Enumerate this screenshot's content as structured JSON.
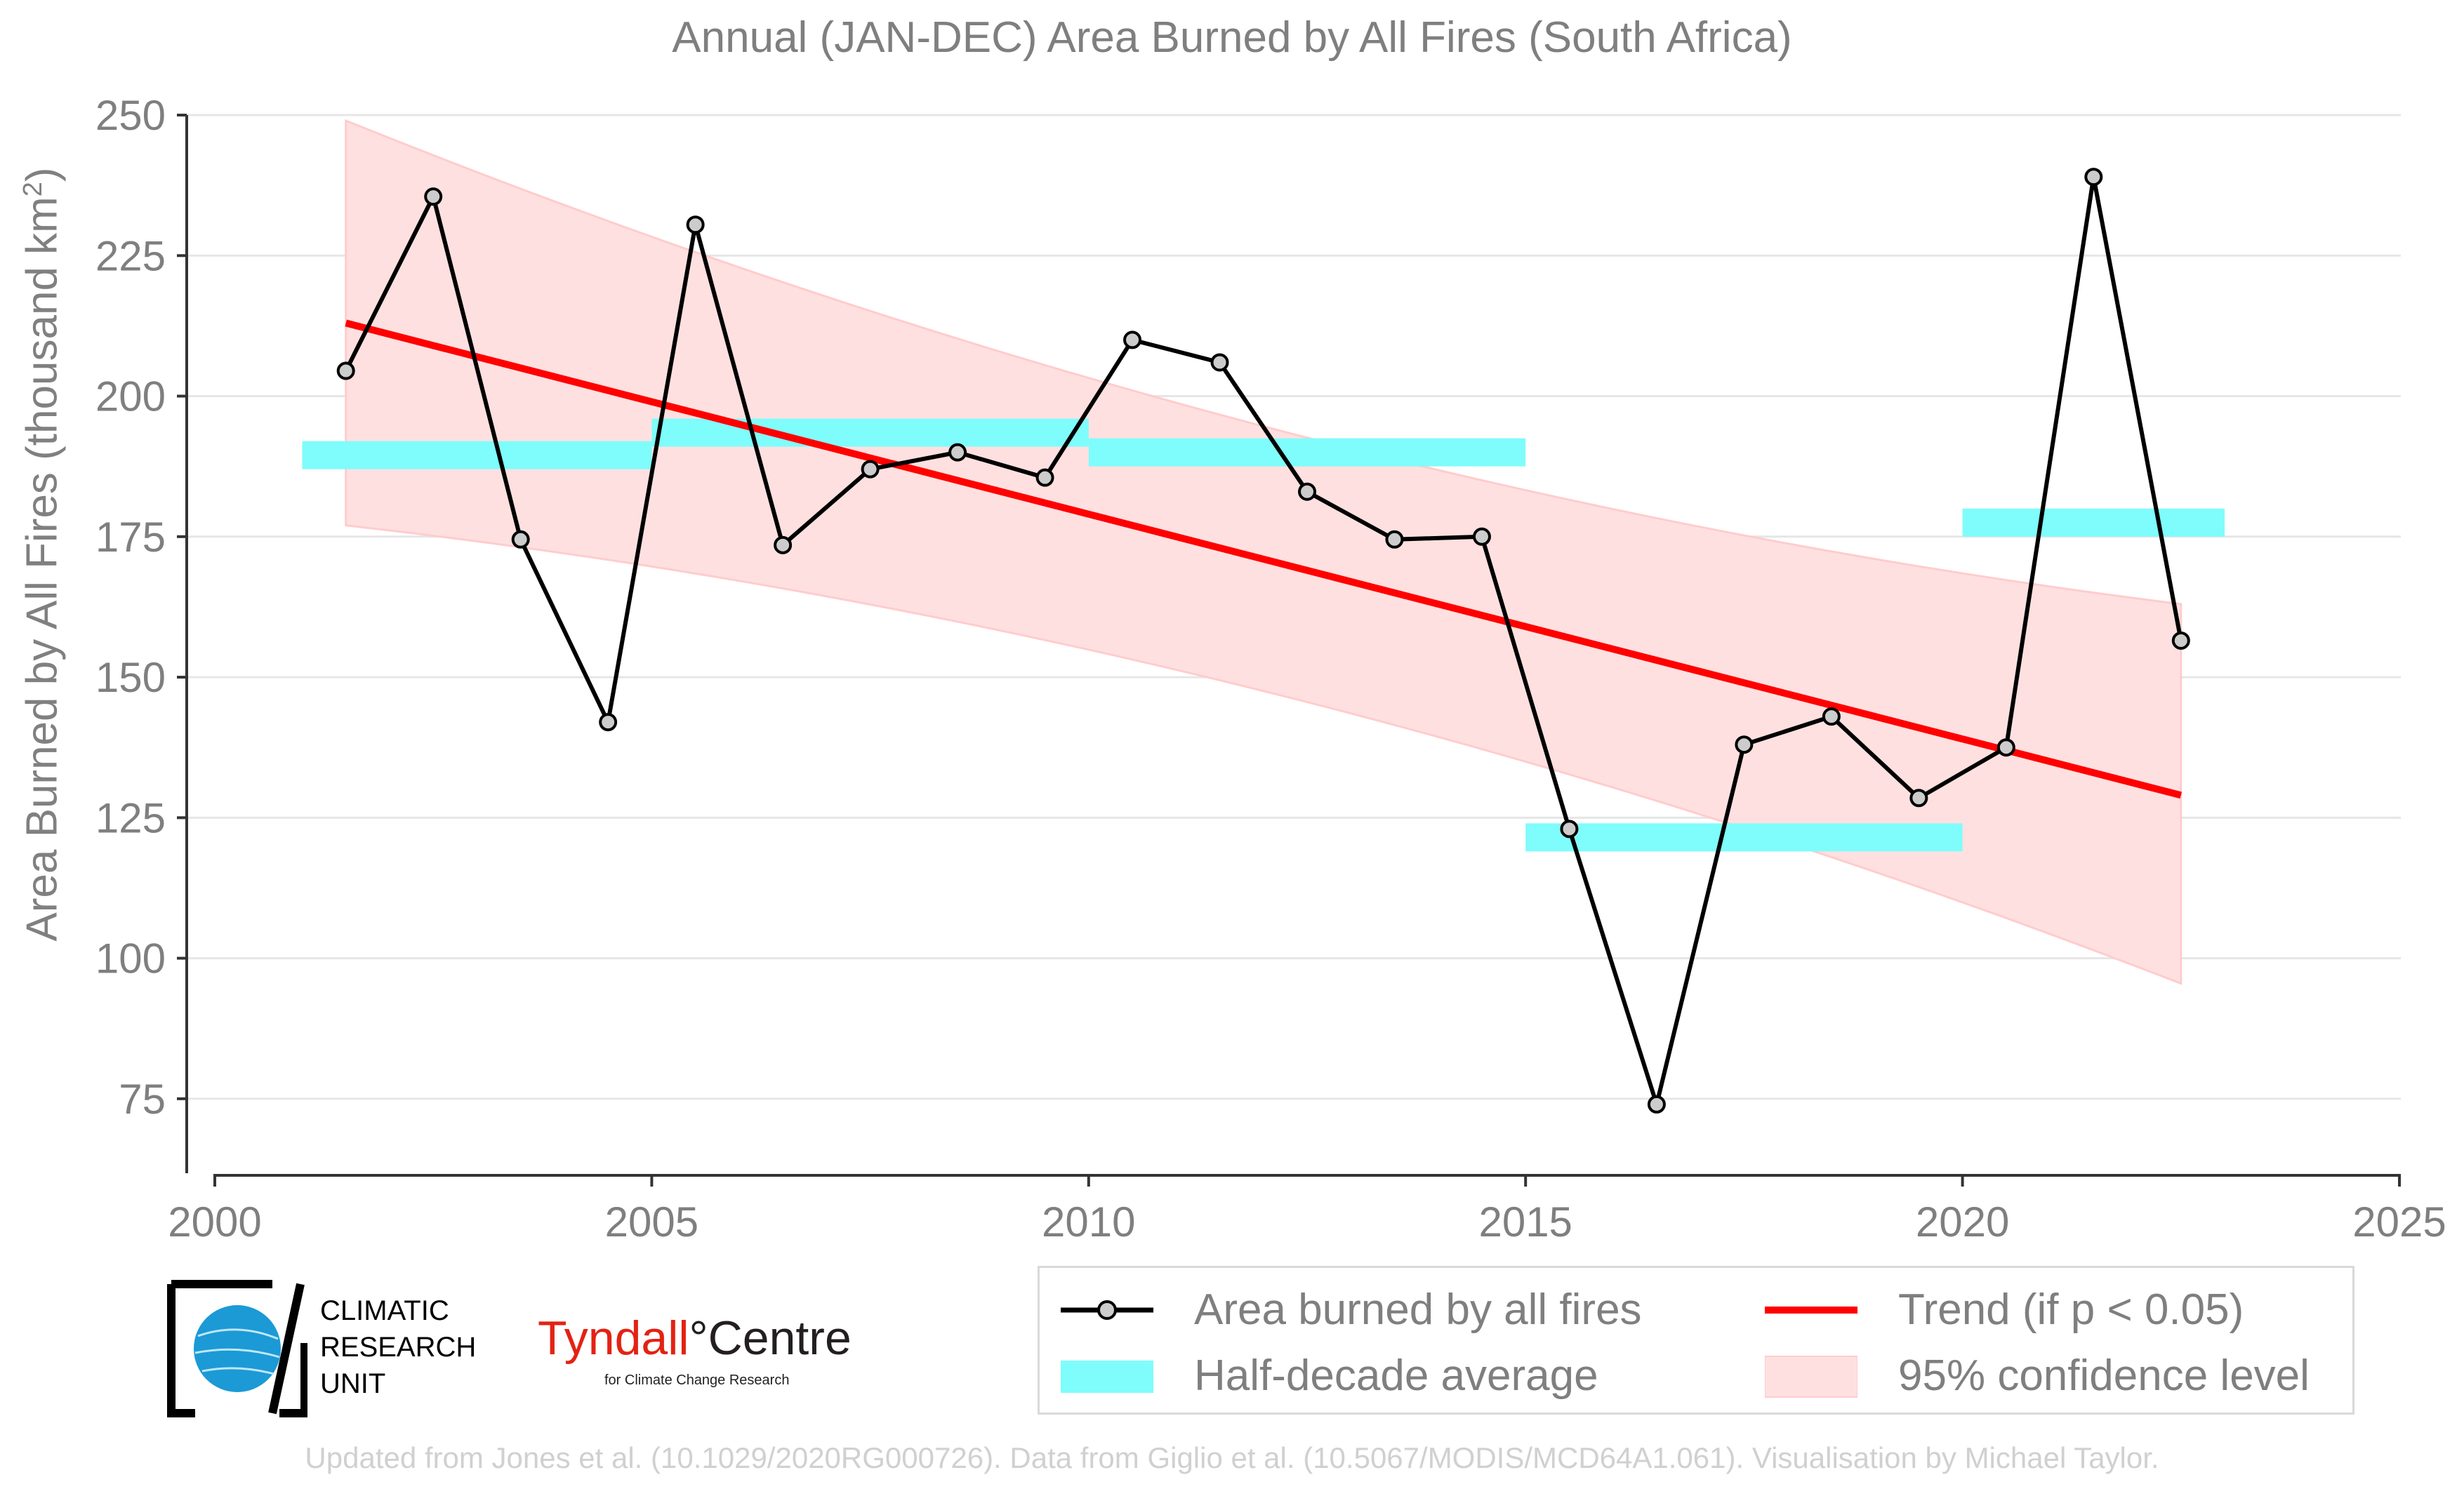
{
  "title": "Annual (JAN-DEC) Area Burned by All Fires (South Africa)",
  "ylabel": "Area Burned by All Fires (thousand km",
  "ylabel_sup": "2",
  "ylabel_close": ")",
  "credit": "Updated from Jones et al. (10.1029/2020RG000726). Data from Giglio et al. (10.5067/MODIS/MCD64A1.061). Visualisation by Michael Taylor.",
  "legend": {
    "area_burned": "Area burned by all fires",
    "trend": "Trend (if p < 0.05)",
    "half_decade": "Half-decade average",
    "confidence": "95% confidence level"
  },
  "logos": {
    "cru_line1": "CLIMATIC",
    "cru_line2": "RESEARCH",
    "cru_line3": "UNIT",
    "tyndall_word1": "Tyndall",
    "tyndall_degree": "°",
    "tyndall_word2": "Centre",
    "tyndall_sub": "for Climate Change Research"
  },
  "colors": {
    "series": "#000000",
    "marker_fill": "#cccccc",
    "trend": "#ff0000",
    "half_decade": "#7ffcfc",
    "confidence": "#ffe0e0",
    "confidence_edge": "#ffcccc",
    "grid": "#e6e6e6",
    "axis_text": "#7f7f7f"
  },
  "chart_data": {
    "type": "line",
    "title": "Annual (JAN-DEC) Area Burned by All Fires (South Africa)",
    "xlabel": "",
    "ylabel": "Area Burned by All Fires (thousand km2)",
    "xlim": [
      2000,
      2025
    ],
    "ylim": [
      62,
      250
    ],
    "x_ticks": [
      2000,
      2005,
      2010,
      2015,
      2020,
      2025
    ],
    "y_ticks": [
      75,
      100,
      125,
      150,
      175,
      200,
      225,
      250
    ],
    "grid": "horizontal",
    "legend_position": "bottom-right",
    "series": [
      {
        "name": "Area burned by all fires",
        "x": [
          2001.5,
          2002.5,
          2003.5,
          2004.5,
          2005.5,
          2006.5,
          2007.5,
          2008.5,
          2009.5,
          2010.5,
          2011.5,
          2012.5,
          2013.5,
          2014.5,
          2015.5,
          2016.5,
          2017.5,
          2018.5,
          2019.5,
          2020.5,
          2021.5,
          2022.5
        ],
        "values": [
          204.5,
          235.5,
          174.5,
          142,
          230.5,
          173.5,
          187,
          190,
          185.5,
          210,
          206,
          183,
          174.5,
          175,
          123,
          74,
          138,
          143,
          128.5,
          137.5,
          239,
          156.5
        ]
      },
      {
        "name": "Trend (if p < 0.05)",
        "x": [
          2001.5,
          2022.5
        ],
        "values": [
          213,
          129
        ]
      }
    ],
    "half_decade_average": {
      "name": "Half-decade average",
      "segments": [
        {
          "x": [
            2001,
            2005
          ],
          "value": 189.5
        },
        {
          "x": [
            2005,
            2010
          ],
          "value": 193.5
        },
        {
          "x": [
            2010,
            2015
          ],
          "value": 190
        },
        {
          "x": [
            2015,
            2020
          ],
          "value": 121.5
        },
        {
          "x": [
            2020,
            2023
          ],
          "value": 177.5
        }
      ]
    },
    "confidence_band": {
      "name": "95% confidence level",
      "x": [
        2001.5,
        2022.5
      ],
      "upper": [
        249,
        163
      ],
      "lower": [
        177,
        95.5
      ]
    }
  }
}
